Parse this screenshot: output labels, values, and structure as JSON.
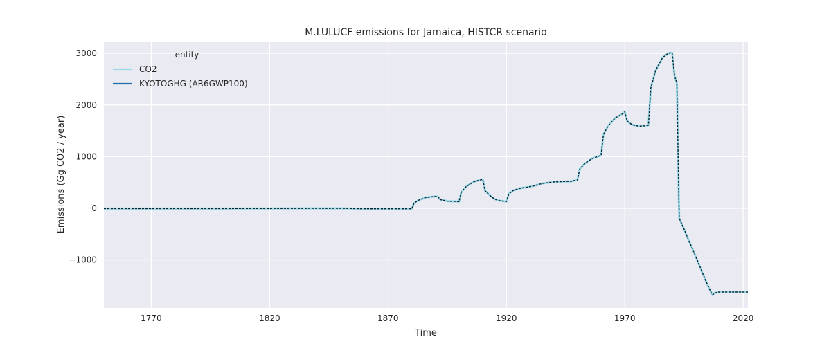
{
  "chart_data": {
    "type": "line",
    "title": "M.LULUCF emissions for Jamaica, HISTCR scenario",
    "xlabel": "Time",
    "ylabel": "Emissions (Gg CO2 / year)",
    "xlim": [
      1750,
      2022
    ],
    "ylim": [
      -1930,
      3230
    ],
    "grid": true,
    "x_ticks": [
      1770,
      1820,
      1870,
      1920,
      1970,
      2020
    ],
    "y_ticks": [
      -1000,
      0,
      1000,
      2000,
      3000
    ],
    "y_tick_labels": [
      "−1000",
      "0",
      "1000",
      "2000",
      "3000"
    ],
    "legend": {
      "title": "entity",
      "placement": "top-left",
      "entries": [
        {
          "name": "CO2",
          "color": "#9ad8e6",
          "style": "solid"
        },
        {
          "name": "KYOTOGHG (AR6GWP100)",
          "color": "#1f6fa8",
          "style": "solid"
        }
      ]
    },
    "series": [
      {
        "name": "CO2",
        "color": "#9ad8e6",
        "style": "solid",
        "x": [
          1750,
          1800,
          1850,
          1860,
          1870,
          1880,
          1881,
          1883,
          1886,
          1890,
          1891,
          1892,
          1895,
          1900,
          1901,
          1903,
          1906,
          1909,
          1910,
          1911,
          1913,
          1915,
          1917,
          1920,
          1921,
          1923,
          1926,
          1929,
          1930,
          1932,
          1935,
          1940,
          1945,
          1947,
          1949,
          1950,
          1951,
          1953,
          1956,
          1959,
          1960,
          1961,
          1963,
          1966,
          1969,
          1970,
          1971,
          1973,
          1976,
          1979,
          1980,
          1981,
          1983,
          1986,
          1988,
          1989,
          1990,
          1991,
          1992,
          1993,
          1995,
          1997,
          1999,
          2001,
          2003,
          2005,
          2007,
          2008,
          2010,
          2015,
          2020,
          2022
        ],
        "y": [
          -5,
          -5,
          0,
          -10,
          -10,
          -10,
          100,
          160,
          210,
          230,
          230,
          170,
          140,
          130,
          320,
          420,
          510,
          550,
          560,
          340,
          250,
          180,
          150,
          130,
          280,
          350,
          390,
          410,
          420,
          440,
          480,
          510,
          520,
          520,
          540,
          550,
          760,
          860,
          960,
          1010,
          1020,
          1430,
          1600,
          1750,
          1830,
          1870,
          1690,
          1620,
          1590,
          1600,
          1610,
          2330,
          2670,
          2920,
          2990,
          3010,
          3010,
          2580,
          2420,
          -190,
          -400,
          -620,
          -830,
          -1050,
          -1270,
          -1490,
          -1680,
          -1640,
          -1620,
          -1620,
          -1620,
          -1620
        ]
      },
      {
        "name": "KYOTOGHG (AR6GWP100)",
        "color": "#1f6fa8",
        "style": "solid",
        "x": [
          1750,
          1800,
          1850,
          1860,
          1870,
          1880,
          1881,
          1883,
          1886,
          1890,
          1891,
          1892,
          1895,
          1900,
          1901,
          1903,
          1906,
          1909,
          1910,
          1911,
          1913,
          1915,
          1917,
          1920,
          1921,
          1923,
          1926,
          1929,
          1930,
          1932,
          1935,
          1940,
          1945,
          1947,
          1949,
          1950,
          1951,
          1953,
          1956,
          1959,
          1960,
          1961,
          1963,
          1966,
          1969,
          1970,
          1971,
          1973,
          1976,
          1979,
          1980,
          1981,
          1983,
          1986,
          1988,
          1989,
          1990,
          1991,
          1992,
          1993,
          1995,
          1997,
          1999,
          2001,
          2003,
          2005,
          2007,
          2008,
          2010,
          2015,
          2020,
          2022
        ],
        "y": [
          -5,
          -5,
          0,
          -10,
          -10,
          -10,
          100,
          160,
          210,
          230,
          230,
          170,
          140,
          130,
          320,
          420,
          510,
          550,
          560,
          340,
          250,
          180,
          150,
          130,
          280,
          350,
          390,
          410,
          420,
          440,
          480,
          510,
          520,
          520,
          540,
          550,
          760,
          860,
          960,
          1010,
          1020,
          1430,
          1600,
          1750,
          1830,
          1870,
          1690,
          1620,
          1590,
          1600,
          1610,
          2330,
          2670,
          2920,
          2990,
          3010,
          3010,
          2580,
          2420,
          -190,
          -400,
          -620,
          -830,
          -1050,
          -1270,
          -1490,
          -1680,
          -1640,
          -1620,
          -1620,
          -1620,
          -1620
        ]
      }
    ]
  }
}
